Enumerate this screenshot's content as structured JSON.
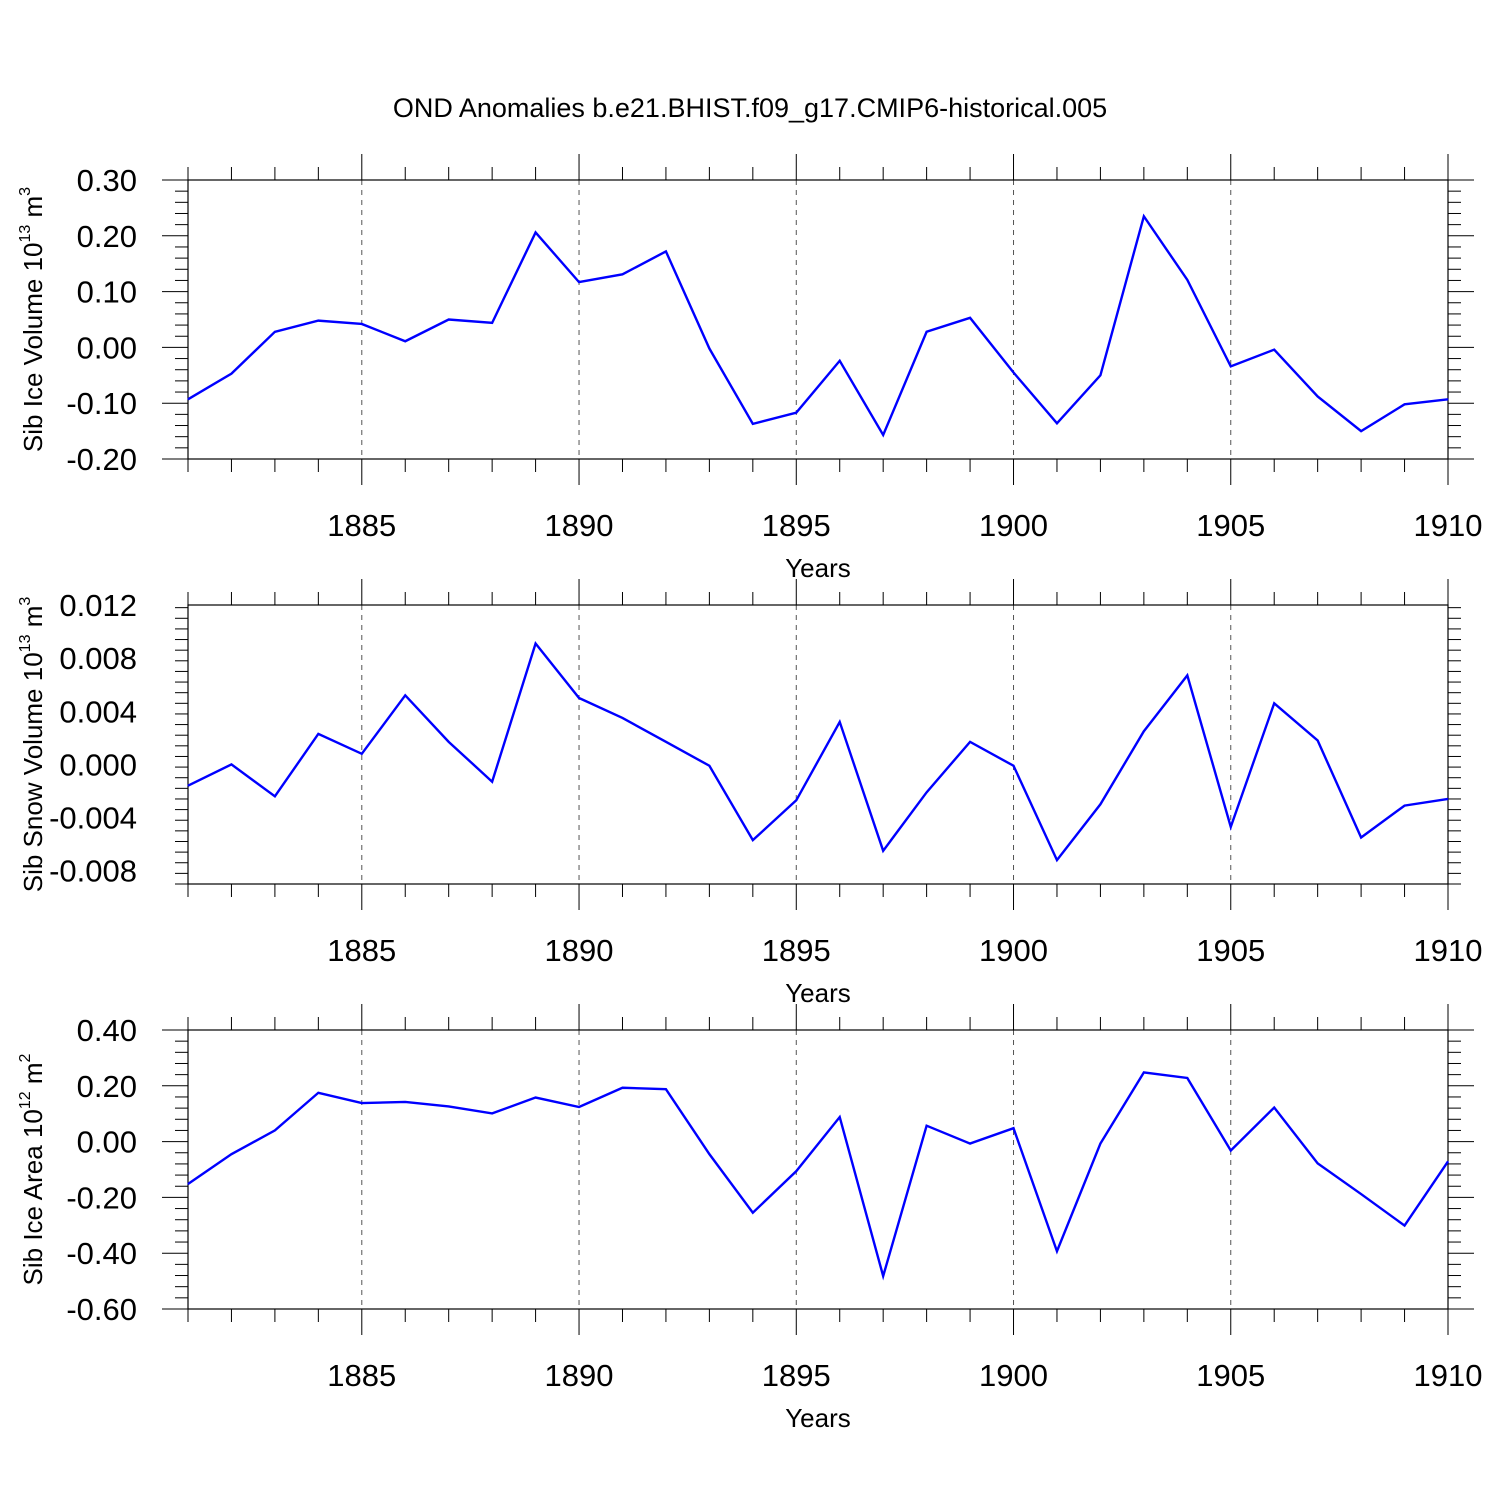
{
  "figure": {
    "title": "OND Anomalies b.e21.BHIST.f09_g17.CMIP6-historical.005",
    "line_color": "#0000ff"
  },
  "chart_data": [
    {
      "type": "line",
      "title": "",
      "xlabel": "Years",
      "ylabel": {
        "main": "Sib Ice Volume 10",
        "exp": "13",
        "unit": " m",
        "unit_exp": "3"
      },
      "xlim": [
        1881,
        1910
      ],
      "ylim": [
        -0.2,
        0.3
      ],
      "xticks": [
        1885,
        1890,
        1895,
        1900,
        1905,
        1910
      ],
      "xtick_labels": [
        "1885",
        "1890",
        "1895",
        "1900",
        "1905",
        "1910"
      ],
      "yticks": [
        -0.2,
        -0.1,
        0.0,
        0.1,
        0.2,
        0.3
      ],
      "ytick_labels": [
        "-0.20",
        "-0.10",
        "0.00",
        "0.10",
        "0.20",
        "0.30"
      ],
      "grid": "vertical dashed at major x ticks",
      "x": [
        1881,
        1882,
        1883,
        1884,
        1885,
        1886,
        1887,
        1888,
        1889,
        1890,
        1891,
        1892,
        1893,
        1894,
        1895,
        1896,
        1897,
        1898,
        1899,
        1900,
        1901,
        1902,
        1903,
        1904,
        1905,
        1906,
        1907,
        1908,
        1909,
        1910
      ],
      "series": [
        {
          "values": [
            -0.093,
            -0.047,
            0.028,
            0.048,
            0.042,
            0.011,
            0.05,
            0.044,
            0.206,
            0.117,
            0.131,
            0.172,
            -0.002,
            -0.137,
            -0.117,
            -0.024,
            -0.157,
            0.028,
            0.053,
            -0.045,
            -0.136,
            -0.05,
            0.235,
            0.121,
            -0.034,
            -0.004,
            -0.088,
            -0.15,
            -0.102,
            -0.093
          ]
        }
      ]
    },
    {
      "type": "line",
      "title": "",
      "xlabel": "Years",
      "ylabel": {
        "main": "Sib Snow Volume 10",
        "exp": "13",
        "unit": " m",
        "unit_exp": "3"
      },
      "xlim": [
        1881,
        1910
      ],
      "ylim": [
        -0.009,
        0.012
      ],
      "xticks": [
        1885,
        1890,
        1895,
        1900,
        1905,
        1910
      ],
      "xtick_labels": [
        "1885",
        "1890",
        "1895",
        "1900",
        "1905",
        "1910"
      ],
      "yticks": [
        -0.008,
        -0.004,
        0.0,
        0.004,
        0.008,
        0.012
      ],
      "ytick_labels": [
        "-0.008",
        "-0.004",
        "0.000",
        "0.004",
        "0.008",
        "0.012"
      ],
      "grid": "vertical dashed at major x ticks",
      "x": [
        1881,
        1882,
        1883,
        1884,
        1885,
        1886,
        1887,
        1888,
        1889,
        1890,
        1891,
        1892,
        1893,
        1894,
        1895,
        1896,
        1897,
        1898,
        1899,
        1900,
        1901,
        1902,
        1903,
        1904,
        1905,
        1906,
        1907,
        1908,
        1909,
        1910
      ],
      "series": [
        {
          "values": [
            -0.0016,
            0.0,
            -0.0024,
            0.0023,
            0.0008,
            0.0052,
            0.0017,
            -0.0013,
            0.0091,
            0.005,
            0.0035,
            0.0017,
            -0.0001,
            -0.0057,
            -0.0027,
            0.0032,
            -0.0065,
            -0.0021,
            0.0017,
            -0.0001,
            -0.0072,
            -0.003,
            0.0025,
            0.0067,
            -0.0047,
            0.0046,
            0.0018,
            -0.0055,
            -0.0031,
            -0.0026
          ]
        }
      ]
    },
    {
      "type": "line",
      "title": "",
      "xlabel": "Years",
      "ylabel": {
        "main": "Sib Ice Area 10",
        "exp": "12",
        "unit": " m",
        "unit_exp": "2"
      },
      "xlim": [
        1881,
        1910
      ],
      "ylim": [
        -0.6,
        0.4
      ],
      "xticks": [
        1885,
        1890,
        1895,
        1900,
        1905,
        1910
      ],
      "xtick_labels": [
        "1885",
        "1890",
        "1895",
        "1900",
        "1905",
        "1910"
      ],
      "yticks": [
        -0.6,
        -0.4,
        -0.2,
        0.0,
        0.2,
        0.4
      ],
      "ytick_labels": [
        "-0.60",
        "-0.40",
        "-0.20",
        "0.00",
        "0.20",
        "0.40"
      ],
      "grid": "vertical dashed at major x ticks",
      "x": [
        1881,
        1882,
        1883,
        1884,
        1885,
        1886,
        1887,
        1888,
        1889,
        1890,
        1891,
        1892,
        1893,
        1894,
        1895,
        1896,
        1897,
        1898,
        1899,
        1900,
        1901,
        1902,
        1903,
        1904,
        1905,
        1906,
        1907,
        1908,
        1909,
        1910
      ],
      "series": [
        {
          "values": [
            -0.152,
            -0.045,
            0.04,
            0.175,
            0.138,
            0.142,
            0.126,
            0.101,
            0.158,
            0.124,
            0.193,
            0.188,
            -0.045,
            -0.255,
            -0.106,
            0.088,
            -0.482,
            0.057,
            -0.007,
            0.048,
            -0.393,
            -0.007,
            0.248,
            0.228,
            -0.032,
            0.122,
            -0.078,
            -0.188,
            -0.301,
            -0.071
          ]
        }
      ]
    }
  ]
}
